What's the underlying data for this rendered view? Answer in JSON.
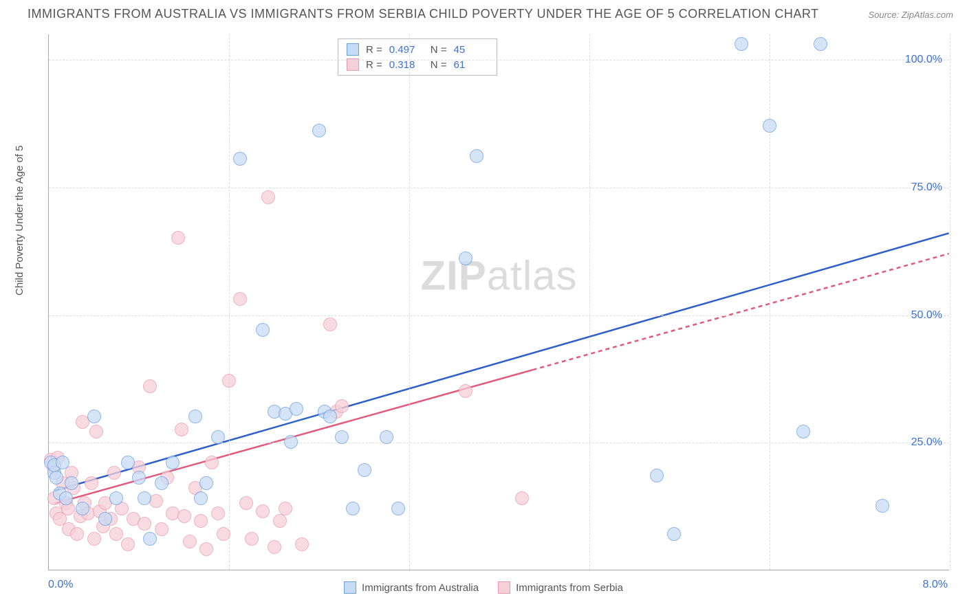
{
  "title": "IMMIGRANTS FROM AUSTRALIA VS IMMIGRANTS FROM SERBIA CHILD POVERTY UNDER THE AGE OF 5 CORRELATION CHART",
  "source_prefix": "Source: ",
  "source": "ZipAtlas.com",
  "ylabel": "Child Poverty Under the Age of 5",
  "watermark_bold": "ZIP",
  "watermark_rest": "atlas",
  "chart": {
    "type": "scatter",
    "xlim": [
      0.0,
      8.0
    ],
    "ylim": [
      0.0,
      105.0
    ],
    "xtick_labels": [
      "0.0%",
      "8.0%"
    ],
    "ytick_values": [
      25.0,
      50.0,
      75.0,
      100.0
    ],
    "ytick_labels": [
      "25.0%",
      "50.0%",
      "75.0%",
      "100.0%"
    ],
    "vgrid_values": [
      1.6,
      3.2,
      4.8,
      6.4,
      8.0
    ],
    "grid_color": "#dddddd",
    "background_color": "#ffffff",
    "axis_color": "#aaaaaa",
    "marker_radius": 10,
    "marker_border_width": 1.2,
    "trend_line_width": 2.5
  },
  "series": [
    {
      "name": "Immigrants from Australia",
      "fill_color": "#c7dbf5",
      "border_color": "#6a9fe0",
      "fill_opacity": 0.75,
      "trend_color": "#2e5fc9",
      "trend": {
        "x1": 0.05,
        "y1": 15.5,
        "x2": 8.0,
        "y2": 66.0,
        "dashed_after_x": null
      },
      "R_label": "R =",
      "R": "0.497",
      "N_label": "N =",
      "N": "45",
      "points": [
        [
          0.02,
          21
        ],
        [
          0.05,
          19
        ],
        [
          0.05,
          20.5
        ],
        [
          0.07,
          18
        ],
        [
          0.1,
          15
        ],
        [
          0.12,
          21
        ],
        [
          0.15,
          14
        ],
        [
          0.2,
          17
        ],
        [
          0.3,
          12
        ],
        [
          0.4,
          30
        ],
        [
          0.5,
          10
        ],
        [
          0.6,
          14
        ],
        [
          0.7,
          21
        ],
        [
          0.8,
          18
        ],
        [
          0.85,
          14
        ],
        [
          0.9,
          6
        ],
        [
          1.0,
          17
        ],
        [
          1.1,
          21
        ],
        [
          1.3,
          30
        ],
        [
          1.35,
          14
        ],
        [
          1.4,
          17
        ],
        [
          1.5,
          26
        ],
        [
          1.7,
          80.5
        ],
        [
          1.9,
          47
        ],
        [
          2.0,
          31
        ],
        [
          2.1,
          30.5
        ],
        [
          2.15,
          25
        ],
        [
          2.2,
          31.5
        ],
        [
          2.4,
          86
        ],
        [
          2.45,
          31
        ],
        [
          2.5,
          30
        ],
        [
          2.6,
          26
        ],
        [
          2.7,
          12
        ],
        [
          2.8,
          19.5
        ],
        [
          3.0,
          26
        ],
        [
          3.1,
          12
        ],
        [
          3.7,
          61
        ],
        [
          3.8,
          81
        ],
        [
          5.4,
          18.5
        ],
        [
          5.55,
          7
        ],
        [
          6.15,
          103
        ],
        [
          6.4,
          87
        ],
        [
          6.7,
          27
        ],
        [
          6.85,
          103
        ],
        [
          7.4,
          12.5
        ]
      ]
    },
    {
      "name": "Immigrants from Serbia",
      "fill_color": "#f6d0d9",
      "border_color": "#e89ab0",
      "fill_opacity": 0.75,
      "trend_color": "#e05a7e",
      "trend": {
        "x1": 0.05,
        "y1": 13.0,
        "x2": 8.0,
        "y2": 62.0,
        "dashed_after_x": 4.3
      },
      "R_label": "R =",
      "R": "0.318",
      "N_label": "N =",
      "N": "61",
      "points": [
        [
          0.02,
          21.5
        ],
        [
          0.04,
          20
        ],
        [
          0.05,
          14
        ],
        [
          0.07,
          11
        ],
        [
          0.08,
          22
        ],
        [
          0.1,
          10
        ],
        [
          0.12,
          17
        ],
        [
          0.15,
          13
        ],
        [
          0.17,
          12
        ],
        [
          0.18,
          8
        ],
        [
          0.2,
          19
        ],
        [
          0.22,
          16
        ],
        [
          0.25,
          7
        ],
        [
          0.28,
          10.5
        ],
        [
          0.3,
          29
        ],
        [
          0.32,
          13
        ],
        [
          0.35,
          11
        ],
        [
          0.38,
          17
        ],
        [
          0.4,
          6
        ],
        [
          0.42,
          27
        ],
        [
          0.45,
          11.5
        ],
        [
          0.48,
          8.5
        ],
        [
          0.5,
          13
        ],
        [
          0.55,
          10
        ],
        [
          0.58,
          19
        ],
        [
          0.6,
          7
        ],
        [
          0.65,
          12
        ],
        [
          0.7,
          5
        ],
        [
          0.75,
          10
        ],
        [
          0.8,
          20
        ],
        [
          0.85,
          9
        ],
        [
          0.9,
          36
        ],
        [
          0.95,
          13.5
        ],
        [
          1.0,
          8
        ],
        [
          1.05,
          18
        ],
        [
          1.1,
          11
        ],
        [
          1.15,
          65
        ],
        [
          1.18,
          27.5
        ],
        [
          1.2,
          10.5
        ],
        [
          1.25,
          5.5
        ],
        [
          1.3,
          16
        ],
        [
          1.35,
          9.5
        ],
        [
          1.4,
          4
        ],
        [
          1.45,
          21
        ],
        [
          1.5,
          11
        ],
        [
          1.55,
          7
        ],
        [
          1.6,
          37
        ],
        [
          1.7,
          53
        ],
        [
          1.75,
          13
        ],
        [
          1.8,
          6
        ],
        [
          1.9,
          11.5
        ],
        [
          1.95,
          73
        ],
        [
          2.0,
          4.5
        ],
        [
          2.05,
          9.5
        ],
        [
          2.1,
          12
        ],
        [
          2.25,
          5
        ],
        [
          2.5,
          48
        ],
        [
          2.55,
          31
        ],
        [
          2.6,
          32
        ],
        [
          3.7,
          35
        ],
        [
          4.2,
          14
        ]
      ]
    }
  ],
  "legend": {
    "items": [
      {
        "label": "Immigrants from Australia",
        "fill": "#c7dbf5",
        "border": "#6a9fe0"
      },
      {
        "label": "Immigrants from Serbia",
        "fill": "#f6d0d9",
        "border": "#e89ab0"
      }
    ]
  }
}
